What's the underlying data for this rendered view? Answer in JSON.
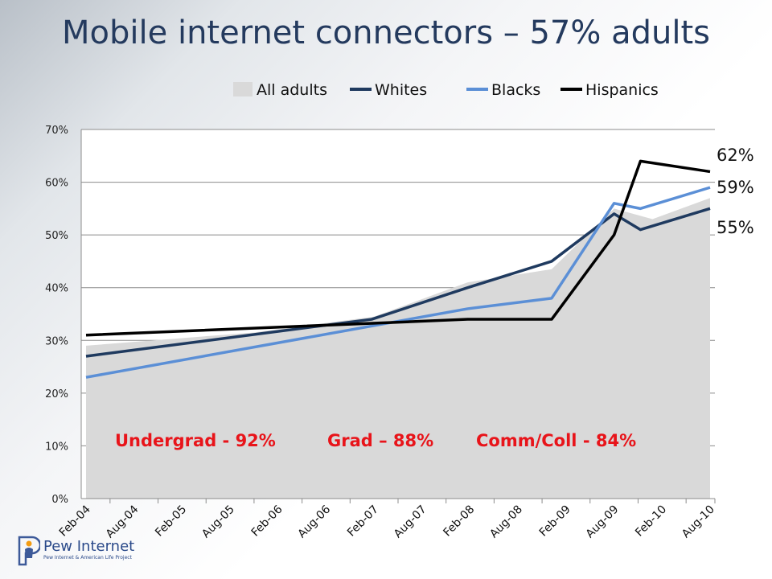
{
  "title": "Mobile internet connectors – 57% adults",
  "logo": {
    "name": "Pew Internet",
    "tagline": "Pew Internet & American Life Project"
  },
  "colors": {
    "all_adults": "#d9d9d9",
    "whites": "#1f3a5f",
    "blacks": "#5b8fd6",
    "hispanics": "#000000",
    "annotation": "#e8141a",
    "title": "#243a5e"
  },
  "chart_data": {
    "type": "line",
    "title": "Mobile internet connectors – 57% adults",
    "xlabel": "",
    "ylabel": "",
    "ylim": [
      0,
      70
    ],
    "y_ticks": [
      "0%",
      "10%",
      "20%",
      "30%",
      "40%",
      "50%",
      "60%",
      "70%"
    ],
    "categories": [
      "Feb-04",
      "Aug-04",
      "Feb-05",
      "Aug-05",
      "Feb-06",
      "Aug-06",
      "Feb-07",
      "Aug-07",
      "Feb-08",
      "Aug-08",
      "Feb-09",
      "Aug-09",
      "Feb-10",
      "Aug-10"
    ],
    "grid": "horizontal",
    "legend_position": "top",
    "series": [
      {
        "name": "All adults",
        "style": "area",
        "points": [
          [
            0,
            29
          ],
          [
            3.5,
            31.5
          ],
          [
            6.0,
            34.5
          ],
          [
            7.95,
            41
          ],
          [
            9.7,
            43.5
          ],
          [
            11.0,
            55
          ],
          [
            11.8,
            53
          ],
          [
            13.0,
            57
          ]
        ]
      },
      {
        "name": "Whites",
        "style": "line",
        "points": [
          [
            0,
            27
          ],
          [
            5.95,
            34
          ],
          [
            7.95,
            40
          ],
          [
            9.7,
            45
          ],
          [
            11.0,
            54
          ],
          [
            11.55,
            51
          ],
          [
            13.0,
            55
          ]
        ]
      },
      {
        "name": "Blacks",
        "style": "line",
        "points": [
          [
            0,
            23
          ],
          [
            7.95,
            36
          ],
          [
            9.7,
            38
          ],
          [
            11.0,
            56
          ],
          [
            11.55,
            55
          ],
          [
            13.0,
            59
          ]
        ]
      },
      {
        "name": "Hispanics",
        "style": "line",
        "points": [
          [
            0,
            31
          ],
          [
            7.95,
            34
          ],
          [
            9.7,
            34
          ],
          [
            11.0,
            50
          ],
          [
            11.55,
            64
          ],
          [
            13.0,
            62
          ]
        ]
      }
    ],
    "end_labels": [
      "62%",
      "59%",
      "55%"
    ],
    "annotations": [
      "Undergrad - 92%",
      "Grad – 88%",
      "Comm/Coll - 84%"
    ]
  }
}
